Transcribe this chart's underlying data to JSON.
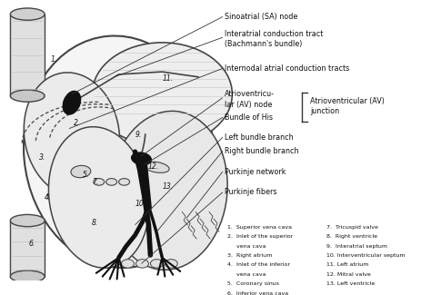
{
  "bg_color": "#ffffff",
  "heart_color": "#f0f0f0",
  "outline_color": "#444444",
  "dark_color": "#111111",
  "dashed_color": "#444444",
  "label_color": "#111111",
  "line_color": "#333333",
  "legend_left": [
    "1.  Superior vena cava",
    "2.  Inlet of the superior",
    "     vena cava",
    "3.  Right atrium",
    "4.  Inlet of the inferior",
    "     vena cava",
    "5.  Coronary sinus",
    "6.  Inferior vena cava"
  ],
  "legend_right": [
    "7.  Tricuspid valve",
    "8.  Right ventricle",
    "9.  Interatrial septum",
    "10. Interventricular septum",
    "11. Left atrium",
    "12. Mitral valve",
    "13. Left ventricle"
  ]
}
